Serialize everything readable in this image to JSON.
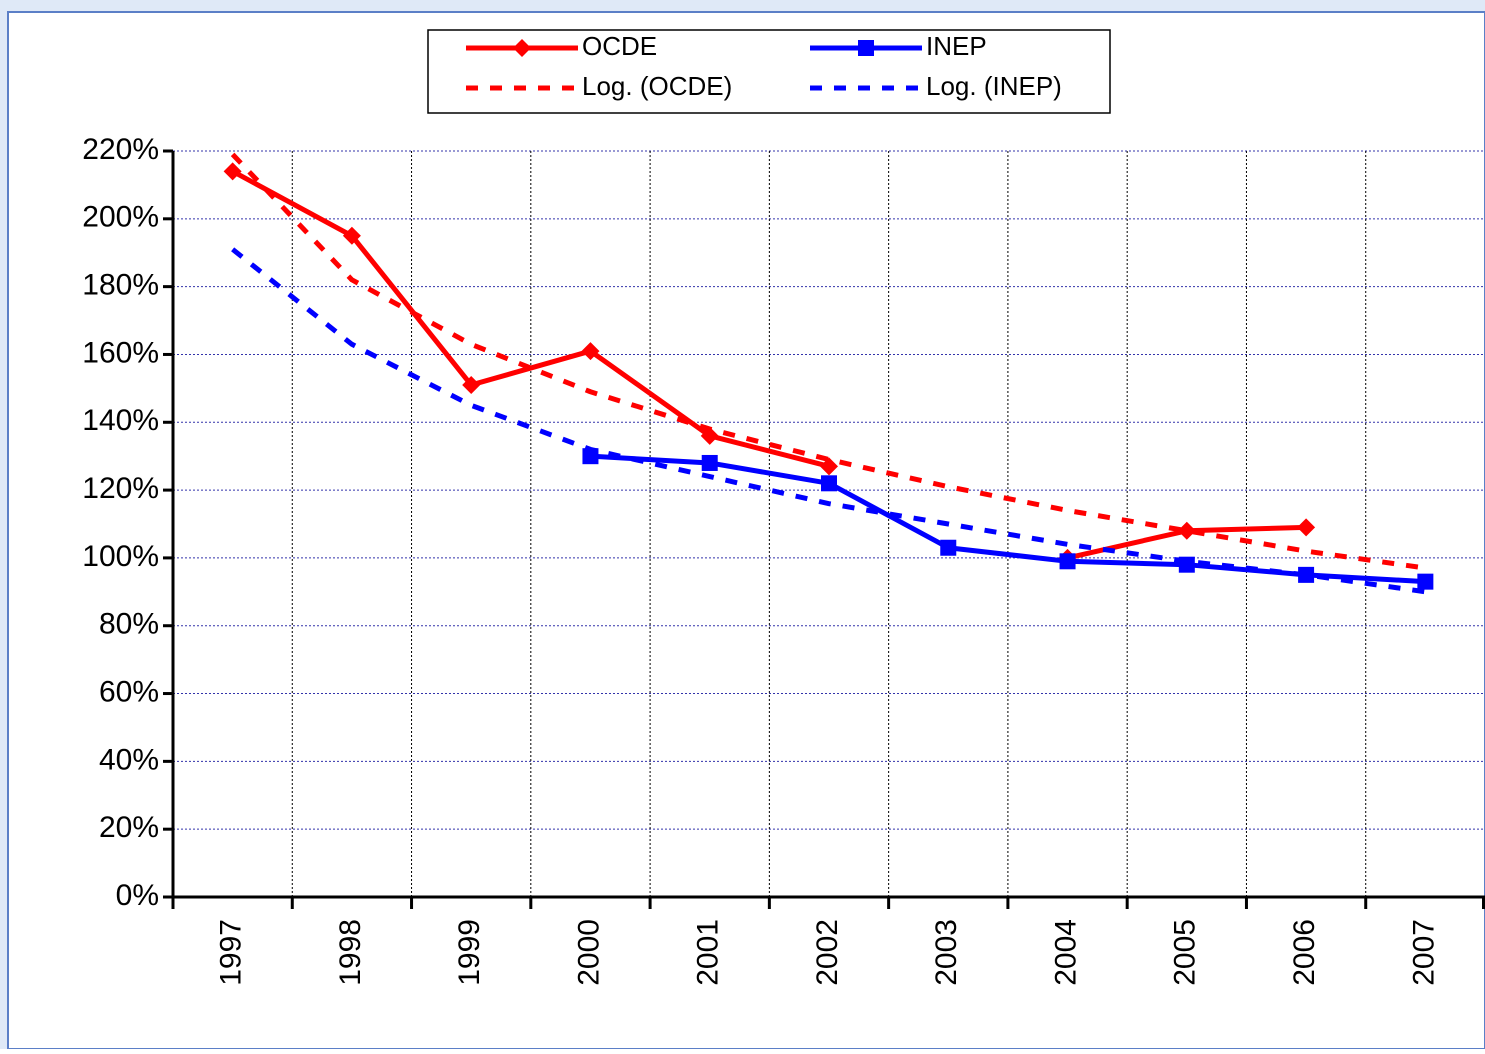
{
  "chart_data": {
    "type": "line",
    "categories": [
      "1997",
      "1998",
      "1999",
      "2000",
      "2001",
      "2002",
      "2003",
      "2004",
      "2005",
      "2006",
      "2007"
    ],
    "series": [
      {
        "name": "OCDE",
        "color": "#ff0000",
        "marker": "diamond",
        "dashed": false,
        "values": [
          214,
          195,
          151,
          161,
          136,
          127,
          null,
          100,
          108,
          109,
          null
        ]
      },
      {
        "name": "INEP",
        "color": "#0000ff",
        "marker": "square",
        "dashed": false,
        "values": [
          null,
          null,
          null,
          130,
          128,
          122,
          103,
          99,
          98,
          95,
          93
        ]
      },
      {
        "name": "Log. (OCDE)",
        "color": "#ff0000",
        "marker": "none",
        "dashed": true,
        "values": [
          219,
          182,
          163,
          149,
          138,
          129,
          121,
          114,
          108,
          102,
          97
        ]
      },
      {
        "name": "Log. (INEP)",
        "color": "#0000ff",
        "marker": "none",
        "dashed": true,
        "values": [
          191,
          163,
          145,
          132,
          124,
          116,
          110,
          104,
          99,
          95,
          90
        ]
      }
    ],
    "ylim": [
      0,
      220
    ],
    "yticks": [
      {
        "value": 0,
        "label": "0%"
      },
      {
        "value": 20,
        "label": "20%"
      },
      {
        "value": 40,
        "label": "40%"
      },
      {
        "value": 60,
        "label": "60%"
      },
      {
        "value": 80,
        "label": "80%"
      },
      {
        "value": 100,
        "label": "100%"
      },
      {
        "value": 120,
        "label": "120%"
      },
      {
        "value": 140,
        "label": "140%"
      },
      {
        "value": 160,
        "label": "160%"
      },
      {
        "value": 180,
        "label": "180%"
      },
      {
        "value": 200,
        "label": "200%"
      },
      {
        "value": 220,
        "label": "220%"
      }
    ],
    "grid": true
  }
}
